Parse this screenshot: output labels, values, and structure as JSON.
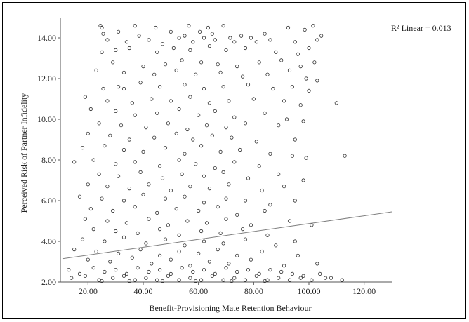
{
  "chart_data": {
    "type": "scatter",
    "title": "",
    "xlabel": "Benefit-Provisioning Mate Retention Behaviour",
    "ylabel": "Perceived Risk of Partner Infidelity",
    "xlim": [
      10,
      130
    ],
    "ylim": [
      2,
      15
    ],
    "xticks": [
      20,
      40,
      60,
      80,
      100,
      120
    ],
    "yticks": [
      2,
      4,
      6,
      8,
      10,
      12,
      14
    ],
    "xtick_labels": [
      "20.00",
      "40.00",
      "60.00",
      "80.00",
      "100.00",
      "120.00"
    ],
    "ytick_labels": [
      "2.00",
      "4.00",
      "6.00",
      "8.00",
      "10.00",
      "12.00",
      "14.00"
    ],
    "annotation": "R² Linear = 0.013",
    "fit_line": {
      "type": "linear",
      "x": [
        11,
        130
      ],
      "y": [
        3.15,
        5.45
      ]
    },
    "grid": false,
    "marker": "open-circle",
    "colors": {
      "marker": "#2b2b2b",
      "fit_line": "#808080",
      "axes": "#555555"
    },
    "points": [
      [
        24.5,
        14.6
      ],
      [
        25,
        14.5
      ],
      [
        37,
        14.6
      ],
      [
        44.5,
        14.5
      ],
      [
        56.5,
        14.6
      ],
      [
        63.5,
        14.5
      ],
      [
        69,
        14.6
      ],
      [
        101.5,
        14.6
      ],
      [
        25.5,
        14.2
      ],
      [
        31,
        14.3
      ],
      [
        38.5,
        14.1
      ],
      [
        50,
        14.3
      ],
      [
        55,
        14.1
      ],
      [
        60.5,
        14.3
      ],
      [
        62,
        14.0
      ],
      [
        65,
        14.2
      ],
      [
        71.5,
        14.0
      ],
      [
        75.5,
        14.1
      ],
      [
        79,
        14.0
      ],
      [
        84,
        14.2
      ],
      [
        92.5,
        14.5
      ],
      [
        98.5,
        14.4
      ],
      [
        103,
        13.9
      ],
      [
        104.5,
        14.1
      ],
      [
        27,
        13.9
      ],
      [
        34,
        13.8
      ],
      [
        42,
        13.9
      ],
      [
        47,
        13.7
      ],
      [
        53,
        14.0
      ],
      [
        58,
        13.8
      ],
      [
        66,
        13.9
      ],
      [
        73,
        13.8
      ],
      [
        81,
        13.8
      ],
      [
        86,
        13.9
      ],
      [
        95,
        13.8
      ],
      [
        25,
        13.3
      ],
      [
        30,
        13.4
      ],
      [
        35,
        13.5
      ],
      [
        45,
        13.3
      ],
      [
        51,
        13.5
      ],
      [
        57,
        13.4
      ],
      [
        64,
        13.6
      ],
      [
        70,
        13.4
      ],
      [
        77,
        13.5
      ],
      [
        88,
        13.3
      ],
      [
        96,
        13.2
      ],
      [
        100,
        13.5
      ],
      [
        29,
        12.8
      ],
      [
        40,
        12.6
      ],
      [
        48,
        12.7
      ],
      [
        54,
        12.9
      ],
      [
        61,
        12.8
      ],
      [
        67,
        12.7
      ],
      [
        74,
        12.6
      ],
      [
        82,
        12.8
      ],
      [
        90,
        12.9
      ],
      [
        97,
        12.6
      ],
      [
        102,
        12.8
      ],
      [
        23,
        12.4
      ],
      [
        33,
        12.3
      ],
      [
        44,
        12.2
      ],
      [
        52,
        12.4
      ],
      [
        59,
        12.2
      ],
      [
        68,
        12.3
      ],
      [
        76,
        12.1
      ],
      [
        85,
        12.2
      ],
      [
        93,
        12.4
      ],
      [
        99,
        12.0
      ],
      [
        103,
        11.9
      ],
      [
        25.5,
        11.5
      ],
      [
        31,
        11.6
      ],
      [
        33,
        11.5
      ],
      [
        39,
        11.8
      ],
      [
        46,
        11.6
      ],
      [
        55,
        11.7
      ],
      [
        62,
        11.5
      ],
      [
        69,
        11.6
      ],
      [
        78,
        11.7
      ],
      [
        87,
        11.5
      ],
      [
        94,
        11.6
      ],
      [
        100,
        11.4
      ],
      [
        19,
        11.1
      ],
      [
        27,
        10.9
      ],
      [
        36,
        10.8
      ],
      [
        43,
        11.0
      ],
      [
        50,
        10.9
      ],
      [
        57,
        11.1
      ],
      [
        64,
        10.8
      ],
      [
        71,
        10.9
      ],
      [
        80,
        11.0
      ],
      [
        91,
        10.9
      ],
      [
        97,
        10.7
      ],
      [
        110,
        10.8
      ],
      [
        21,
        10.5
      ],
      [
        30,
        10.4
      ],
      [
        37,
        10.2
      ],
      [
        45,
        10.3
      ],
      [
        53,
        10.5
      ],
      [
        60,
        10.2
      ],
      [
        66,
        10.4
      ],
      [
        73,
        10.1
      ],
      [
        84,
        10.3
      ],
      [
        92,
        10.0
      ],
      [
        24,
        9.8
      ],
      [
        32,
        9.7
      ],
      [
        41,
        9.6
      ],
      [
        49,
        9.8
      ],
      [
        56,
        9.5
      ],
      [
        63,
        9.7
      ],
      [
        70,
        9.6
      ],
      [
        77,
        9.8
      ],
      [
        89,
        9.7
      ],
      [
        98,
        9.9
      ],
      [
        20,
        9.3
      ],
      [
        28,
        9.2
      ],
      [
        35,
        9.0
      ],
      [
        44,
        9.1
      ],
      [
        52,
        9.3
      ],
      [
        58,
        9.0
      ],
      [
        65,
        9.2
      ],
      [
        72,
        9.1
      ],
      [
        81,
        8.9
      ],
      [
        95,
        9.0
      ],
      [
        18,
        8.6
      ],
      [
        26,
        8.7
      ],
      [
        33,
        8.5
      ],
      [
        40,
        8.4
      ],
      [
        48,
        8.6
      ],
      [
        55,
        8.3
      ],
      [
        61,
        8.7
      ],
      [
        68,
        8.4
      ],
      [
        75,
        8.5
      ],
      [
        86,
        8.3
      ],
      [
        94,
        8.2
      ],
      [
        113,
        8.2
      ],
      [
        15,
        7.9
      ],
      [
        22,
        8.0
      ],
      [
        30,
        7.8
      ],
      [
        37,
        7.9
      ],
      [
        46,
        7.7
      ],
      [
        53,
        8.0
      ],
      [
        59,
        7.8
      ],
      [
        66,
        7.6
      ],
      [
        73,
        7.9
      ],
      [
        82,
        7.7
      ],
      [
        99,
        8.1
      ],
      [
        24,
        7.3
      ],
      [
        31,
        7.2
      ],
      [
        39,
        7.4
      ],
      [
        47,
        7.1
      ],
      [
        54,
        7.3
      ],
      [
        62,
        7.2
      ],
      [
        69,
        7.4
      ],
      [
        78,
        7.1
      ],
      [
        89,
        7.3
      ],
      [
        98,
        7.0
      ],
      [
        20,
        6.8
      ],
      [
        27,
        6.7
      ],
      [
        35,
        6.6
      ],
      [
        42,
        6.8
      ],
      [
        50,
        6.5
      ],
      [
        57,
        6.7
      ],
      [
        64,
        6.6
      ],
      [
        71,
        6.8
      ],
      [
        83,
        6.5
      ],
      [
        91,
        6.7
      ],
      [
        17,
        6.2
      ],
      [
        25,
        6.1
      ],
      [
        33,
        6.0
      ],
      [
        40,
        6.3
      ],
      [
        48,
        6.1
      ],
      [
        55,
        6.2
      ],
      [
        62,
        5.9
      ],
      [
        70,
        6.1
      ],
      [
        77,
        6.0
      ],
      [
        86,
        5.8
      ],
      [
        95,
        6.0
      ],
      [
        21,
        5.6
      ],
      [
        29,
        5.5
      ],
      [
        37,
        5.7
      ],
      [
        45,
        5.4
      ],
      [
        52,
        5.6
      ],
      [
        60,
        5.5
      ],
      [
        67,
        5.7
      ],
      [
        74,
        5.3
      ],
      [
        84,
        5.5
      ],
      [
        101,
        4.8
      ],
      [
        19,
        5.1
      ],
      [
        27,
        5.0
      ],
      [
        34,
        4.9
      ],
      [
        42,
        5.1
      ],
      [
        49,
        4.8
      ],
      [
        56,
        5.0
      ],
      [
        63,
        4.9
      ],
      [
        70,
        5.1
      ],
      [
        79,
        4.8
      ],
      [
        93,
        5.0
      ],
      [
        22,
        4.6
      ],
      [
        30,
        4.5
      ],
      [
        38,
        4.4
      ],
      [
        46,
        4.6
      ],
      [
        53,
        4.3
      ],
      [
        61,
        4.5
      ],
      [
        68,
        4.4
      ],
      [
        76,
        4.6
      ],
      [
        85,
        4.3
      ],
      [
        18,
        4.1
      ],
      [
        26,
        4.0
      ],
      [
        33,
        4.2
      ],
      [
        41,
        3.9
      ],
      [
        48,
        4.1
      ],
      [
        55,
        3.8
      ],
      [
        62,
        4.0
      ],
      [
        69,
        3.9
      ],
      [
        77,
        4.1
      ],
      [
        88,
        3.8
      ],
      [
        95,
        4.0
      ],
      [
        15,
        3.6
      ],
      [
        23,
        3.5
      ],
      [
        31,
        3.4
      ],
      [
        39,
        3.6
      ],
      [
        46,
        3.3
      ],
      [
        53,
        3.5
      ],
      [
        60,
        3.4
      ],
      [
        67,
        3.6
      ],
      [
        74,
        3.3
      ],
      [
        83,
        3.5
      ],
      [
        96,
        3.3
      ],
      [
        20,
        3.1
      ],
      [
        28,
        3.0
      ],
      [
        36,
        3.2
      ],
      [
        43,
        2.9
      ],
      [
        50,
        3.1
      ],
      [
        57,
        2.8
      ],
      [
        64,
        3.0
      ],
      [
        71,
        2.9
      ],
      [
        79,
        3.1
      ],
      [
        91,
        2.8
      ],
      [
        103,
        2.9
      ],
      [
        13,
        2.6
      ],
      [
        17,
        2.4
      ],
      [
        22,
        2.7
      ],
      [
        26,
        2.5
      ],
      [
        30,
        2.6
      ],
      [
        34,
        2.4
      ],
      [
        38,
        2.7
      ],
      [
        42,
        2.5
      ],
      [
        46,
        2.6
      ],
      [
        50,
        2.4
      ],
      [
        54,
        2.7
      ],
      [
        58,
        2.5
      ],
      [
        62,
        2.6
      ],
      [
        66,
        2.4
      ],
      [
        70,
        2.7
      ],
      [
        74,
        2.5
      ],
      [
        78,
        2.6
      ],
      [
        82,
        2.4
      ],
      [
        86,
        2.6
      ],
      [
        90,
        2.5
      ],
      [
        94,
        2.4
      ],
      [
        98,
        2.3
      ],
      [
        104,
        2.4
      ],
      [
        108,
        2.2
      ],
      [
        112,
        2.1
      ],
      [
        14,
        2.2
      ],
      [
        19,
        2.3
      ],
      [
        24,
        2.1
      ],
      [
        29,
        2.2
      ],
      [
        33,
        2.3
      ],
      [
        37,
        2.1
      ],
      [
        41,
        2.2
      ],
      [
        45,
        2.1
      ],
      [
        49,
        2.3
      ],
      [
        53,
        2.1
      ],
      [
        57,
        2.2
      ],
      [
        61,
        2.1
      ],
      [
        65,
        2.3
      ],
      [
        69,
        2.1
      ],
      [
        73,
        2.2
      ],
      [
        77,
        2.1
      ],
      [
        81,
        2.3
      ],
      [
        85,
        2.1
      ],
      [
        89,
        2.2
      ],
      [
        93,
        2.1
      ],
      [
        97,
        2.2
      ],
      [
        101,
        2.1
      ],
      [
        106,
        2.2
      ],
      [
        25,
        2.05
      ],
      [
        35,
        2.05
      ],
      [
        47,
        2.05
      ],
      [
        59,
        2.05
      ],
      [
        72,
        2.05
      ],
      [
        84,
        2.05
      ]
    ]
  }
}
